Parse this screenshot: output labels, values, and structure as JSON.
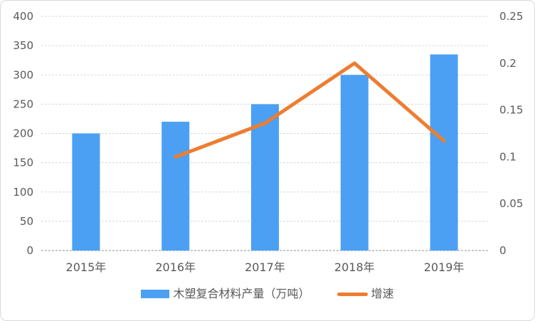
{
  "chart_data": {
    "type": "bar+line combo",
    "title": "",
    "categories": [
      "2015年",
      "2016年",
      "2017年",
      "2018年",
      "2019年"
    ],
    "series": [
      {
        "name": "木塑复合材料产量（万吨）",
        "type": "bar",
        "axis": "left",
        "color": "#4BA0F4",
        "values": [
          200,
          220,
          250,
          300,
          335
        ]
      },
      {
        "name": "增速",
        "type": "line",
        "axis": "right",
        "color": "#ED7D31",
        "values": [
          null,
          0.1,
          0.136,
          0.2,
          0.117
        ]
      }
    ],
    "left_axis": {
      "range": [
        0,
        400
      ],
      "tick_step": 50,
      "ticks": [
        0,
        50,
        100,
        150,
        200,
        250,
        300,
        350,
        400
      ]
    },
    "right_axis": {
      "range": [
        0,
        0.25
      ],
      "tick_step": 0.05,
      "tick_values": [
        0,
        0.05,
        0.1,
        0.15,
        0.2,
        0.25
      ],
      "tick_labels": [
        "0",
        "0.05",
        "0.1",
        "0.15",
        "0.2",
        "0.25"
      ]
    },
    "grid": "horizontal-dashed",
    "legend_position": "bottom"
  },
  "colors": {
    "bar": "#4BA0F4",
    "line": "#ED7D31",
    "text": "#595959",
    "gridline": "#D9D9D9",
    "axis_line": "#C9C9C9",
    "border": "#D9D9D9",
    "background": "#FFFFFF"
  }
}
